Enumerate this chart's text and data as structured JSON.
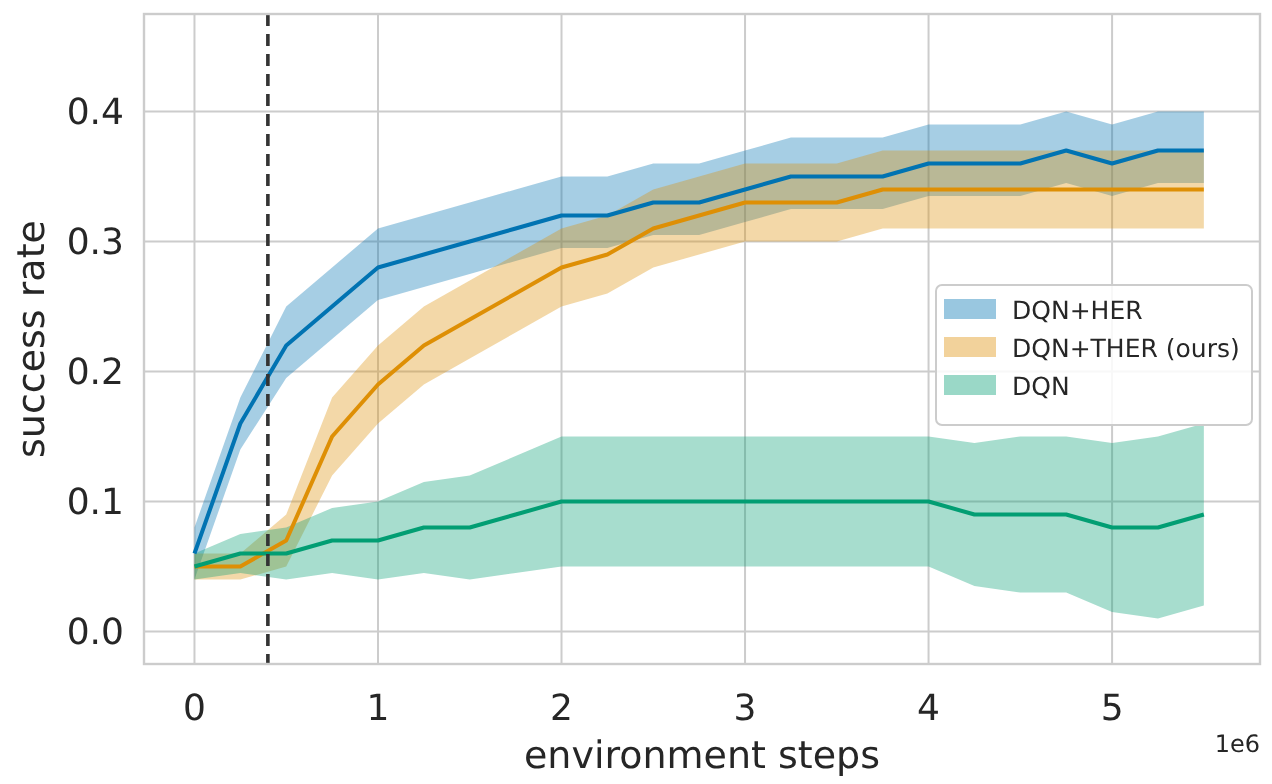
{
  "chart_data": {
    "type": "line",
    "xlabel": "environment steps",
    "ylabel": "success rate",
    "x": [
      0,
      0.25,
      0.5,
      0.75,
      1,
      1.25,
      1.5,
      1.75,
      2,
      2.25,
      2.5,
      2.75,
      3,
      3.25,
      3.5,
      3.75,
      4,
      4.25,
      4.5,
      4.75,
      5,
      5.25,
      5.5
    ],
    "series": [
      {
        "name": "DQN+HER",
        "color": "#0173b2",
        "values": [
          0.06,
          0.16,
          0.22,
          0.25,
          0.28,
          0.29,
          0.3,
          0.31,
          0.32,
          0.32,
          0.33,
          0.33,
          0.34,
          0.35,
          0.35,
          0.35,
          0.36,
          0.36,
          0.36,
          0.37,
          0.36,
          0.37,
          0.37
        ],
        "lower": [
          0.04,
          0.14,
          0.195,
          0.225,
          0.255,
          0.265,
          0.275,
          0.285,
          0.295,
          0.295,
          0.305,
          0.305,
          0.315,
          0.325,
          0.325,
          0.325,
          0.335,
          0.335,
          0.335,
          0.345,
          0.335,
          0.345,
          0.345
        ],
        "upper": [
          0.08,
          0.18,
          0.25,
          0.28,
          0.31,
          0.32,
          0.33,
          0.34,
          0.35,
          0.35,
          0.36,
          0.36,
          0.37,
          0.38,
          0.38,
          0.38,
          0.39,
          0.39,
          0.39,
          0.4,
          0.39,
          0.4,
          0.4
        ]
      },
      {
        "name": "DQN+THER (ours)",
        "color": "#de8f05",
        "values": [
          0.05,
          0.05,
          0.07,
          0.15,
          0.19,
          0.22,
          0.24,
          0.26,
          0.28,
          0.29,
          0.31,
          0.32,
          0.33,
          0.33,
          0.33,
          0.34,
          0.34,
          0.34,
          0.34,
          0.34,
          0.34,
          0.34,
          0.34
        ],
        "lower": [
          0.04,
          0.04,
          0.05,
          0.12,
          0.16,
          0.19,
          0.21,
          0.23,
          0.25,
          0.26,
          0.28,
          0.29,
          0.3,
          0.3,
          0.3,
          0.31,
          0.31,
          0.31,
          0.31,
          0.31,
          0.31,
          0.31,
          0.31
        ],
        "upper": [
          0.06,
          0.06,
          0.09,
          0.18,
          0.22,
          0.25,
          0.27,
          0.29,
          0.31,
          0.32,
          0.34,
          0.35,
          0.36,
          0.36,
          0.36,
          0.37,
          0.37,
          0.37,
          0.37,
          0.37,
          0.37,
          0.37,
          0.37
        ]
      },
      {
        "name": "DQN",
        "color": "#029e73",
        "values": [
          0.05,
          0.06,
          0.06,
          0.07,
          0.07,
          0.08,
          0.08,
          0.09,
          0.1,
          0.1,
          0.1,
          0.1,
          0.1,
          0.1,
          0.1,
          0.1,
          0.1,
          0.09,
          0.09,
          0.09,
          0.08,
          0.08,
          0.09
        ],
        "lower": [
          0.04,
          0.045,
          0.04,
          0.045,
          0.04,
          0.045,
          0.04,
          0.045,
          0.05,
          0.05,
          0.05,
          0.05,
          0.05,
          0.05,
          0.05,
          0.05,
          0.05,
          0.035,
          0.03,
          0.03,
          0.015,
          0.01,
          0.02
        ],
        "upper": [
          0.06,
          0.075,
          0.08,
          0.095,
          0.1,
          0.115,
          0.12,
          0.135,
          0.15,
          0.15,
          0.15,
          0.15,
          0.15,
          0.15,
          0.15,
          0.15,
          0.15,
          0.145,
          0.15,
          0.15,
          0.145,
          0.15,
          0.16
        ]
      }
    ],
    "xlim": [
      -0.275,
      5.806
    ],
    "ylim": [
      -0.025,
      0.475
    ],
    "xticks": [
      0,
      1,
      2,
      3,
      4,
      5
    ],
    "yticks": [
      {
        "value": 0,
        "label": "0.0"
      },
      {
        "value": 0.1,
        "label": "0.1"
      },
      {
        "value": 0.2,
        "label": "0.2"
      },
      {
        "value": 0.3,
        "label": "0.3"
      },
      {
        "value": 0.4,
        "label": "0.4"
      }
    ],
    "ref_lines": [
      {
        "axis": "x",
        "value": 0.4,
        "color": "#333333",
        "line_style": "dashed"
      }
    ],
    "annotations": [
      "1e6"
    ],
    "grid": true,
    "legend": "right",
    "marker": "none",
    "line_style": "solid"
  }
}
